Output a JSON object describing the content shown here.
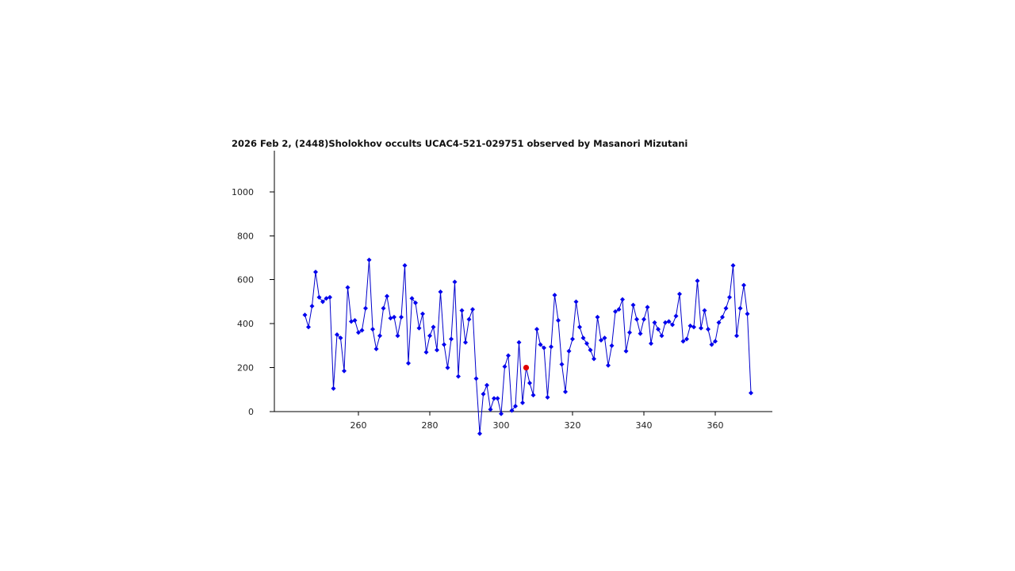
{
  "chart_data": {
    "type": "line",
    "title": "2026 Feb 2, (2448)Sholokhov occults UCAC4-521-029751 observed by Masanori Mizutani",
    "xlabel": "",
    "ylabel": "",
    "xlim": [
      240,
      376
    ],
    "ylim": [
      0,
      1200
    ],
    "x_ticks": [
      260,
      280,
      300,
      320,
      340,
      360
    ],
    "y_ticks": [
      0,
      200,
      400,
      600,
      800,
      1000
    ],
    "grid": false,
    "line_color": "#0000cc",
    "marker_color": "#0000ee",
    "highlight_color": "#e00000",
    "x": [
      245,
      246,
      247,
      248,
      249,
      250,
      251,
      252,
      253,
      254,
      255,
      256,
      257,
      258,
      259,
      260,
      261,
      262,
      263,
      264,
      265,
      266,
      267,
      268,
      269,
      270,
      271,
      272,
      273,
      274,
      275,
      276,
      277,
      278,
      279,
      280,
      281,
      282,
      283,
      284,
      285,
      286,
      287,
      288,
      289,
      290,
      291,
      292,
      293,
      294,
      295,
      296,
      297,
      298,
      299,
      300,
      301,
      302,
      303,
      304,
      305,
      306,
      307,
      308,
      309,
      310,
      311,
      312,
      313,
      314,
      315,
      316,
      317,
      318,
      319,
      320,
      321,
      322,
      323,
      324,
      325,
      326,
      327,
      328,
      329,
      330,
      331,
      332,
      333,
      334,
      335,
      336,
      337,
      338,
      339,
      340,
      341,
      342,
      343,
      344,
      345,
      346,
      347,
      348,
      349,
      350,
      351,
      352,
      353,
      354,
      355,
      356,
      357,
      358,
      359,
      360,
      361,
      362,
      363,
      364,
      365,
      366,
      367,
      368,
      369,
      370
    ],
    "values": [
      440,
      385,
      480,
      635,
      520,
      500,
      515,
      520,
      105,
      350,
      335,
      185,
      565,
      410,
      415,
      360,
      370,
      470,
      690,
      375,
      285,
      345,
      470,
      525,
      425,
      430,
      345,
      430,
      665,
      220,
      515,
      495,
      380,
      445,
      270,
      345,
      385,
      280,
      545,
      305,
      200,
      330,
      590,
      160,
      460,
      315,
      420,
      465,
      150,
      -100,
      80,
      120,
      10,
      60,
      60,
      -10,
      205,
      255,
      5,
      25,
      315,
      40,
      200,
      130,
      75,
      375,
      305,
      290,
      65,
      295,
      530,
      415,
      215,
      90,
      275,
      330,
      500,
      385,
      335,
      310,
      280,
      240,
      430,
      325,
      335,
      210,
      300,
      455,
      465,
      510,
      275,
      360,
      485,
      420,
      355,
      420,
      475,
      310,
      405,
      375,
      345,
      405,
      410,
      395,
      435,
      535,
      320,
      330,
      390,
      385,
      595,
      380,
      460,
      375,
      305,
      320,
      405,
      430,
      470,
      520,
      665,
      345,
      470,
      575,
      445,
      85
    ],
    "highlight": {
      "x": 307,
      "value": 200
    }
  }
}
